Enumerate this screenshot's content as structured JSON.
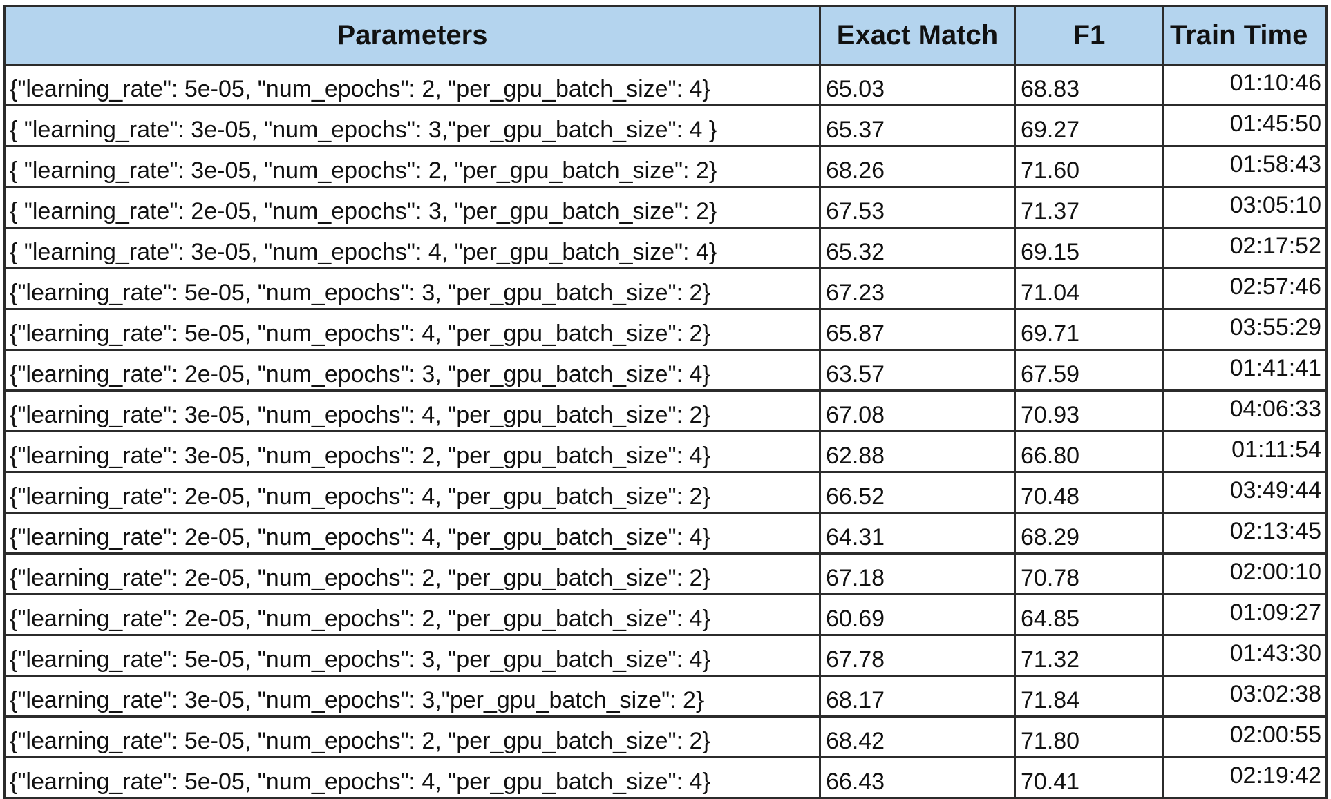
{
  "table": {
    "headers": [
      "Parameters",
      "Exact Match",
      "F1",
      "Train Time"
    ],
    "rows": [
      [
        "{\"learning_rate\": 5e-05, \"num_epochs\": 2, \"per_gpu_batch_size\": 4}",
        "65.03",
        "68.83",
        "01:10:46"
      ],
      [
        "{ \"learning_rate\": 3e-05, \"num_epochs\": 3,\"per_gpu_batch_size\": 4 }",
        "65.37",
        "69.27",
        "01:45:50"
      ],
      [
        "{ \"learning_rate\": 3e-05, \"num_epochs\": 2, \"per_gpu_batch_size\": 2}",
        "68.26",
        "71.60",
        "01:58:43"
      ],
      [
        "{ \"learning_rate\": 2e-05, \"num_epochs\": 3, \"per_gpu_batch_size\": 2}",
        "67.53",
        "71.37",
        "03:05:10"
      ],
      [
        "{ \"learning_rate\": 3e-05, \"num_epochs\": 4, \"per_gpu_batch_size\": 4}",
        "65.32",
        "69.15",
        "02:17:52"
      ],
      [
        "{\"learning_rate\": 5e-05, \"num_epochs\": 3, \"per_gpu_batch_size\": 2}",
        "67.23",
        "71.04",
        "02:57:46"
      ],
      [
        "{\"learning_rate\": 5e-05, \"num_epochs\": 4, \"per_gpu_batch_size\": 2}",
        "65.87",
        "69.71",
        "03:55:29"
      ],
      [
        "{\"learning_rate\": 2e-05, \"num_epochs\": 3, \"per_gpu_batch_size\": 4}",
        "63.57",
        "67.59",
        "01:41:41"
      ],
      [
        "{\"learning_rate\": 3e-05, \"num_epochs\": 4, \"per_gpu_batch_size\": 2}",
        "67.08",
        "70.93",
        "04:06:33"
      ],
      [
        "{\"learning_rate\": 3e-05, \"num_epochs\": 2, \"per_gpu_batch_size\": 4}",
        "62.88",
        "66.80",
        "01:11:54"
      ],
      [
        "{\"learning_rate\": 2e-05, \"num_epochs\": 4, \"per_gpu_batch_size\": 2}",
        "66.52",
        "70.48",
        "03:49:44"
      ],
      [
        "{\"learning_rate\": 2e-05, \"num_epochs\": 4, \"per_gpu_batch_size\": 4}",
        "64.31",
        "68.29",
        "02:13:45"
      ],
      [
        "{\"learning_rate\": 2e-05, \"num_epochs\": 2, \"per_gpu_batch_size\": 2}",
        "67.18",
        "70.78",
        "02:00:10"
      ],
      [
        "{\"learning_rate\": 2e-05, \"num_epochs\": 2, \"per_gpu_batch_size\": 4}",
        "60.69",
        "64.85",
        "01:09:27"
      ],
      [
        "{\"learning_rate\": 5e-05, \"num_epochs\": 3, \"per_gpu_batch_size\": 4}",
        "67.78",
        "71.32",
        "01:43:30"
      ],
      [
        "{\"learning_rate\": 3e-05, \"num_epochs\": 3,\"per_gpu_batch_size\": 2}",
        "68.17",
        "71.84",
        "03:02:38"
      ],
      [
        "{\"learning_rate\": 5e-05, \"num_epochs\": 2,  \"per_gpu_batch_size\": 2}",
        "68.42",
        "71.80",
        "02:00:55"
      ],
      [
        "{\"learning_rate\": 5e-05, \"num_epochs\": 4, \"per_gpu_batch_size\": 4}",
        "66.43",
        "70.41",
        "02:19:42"
      ]
    ]
  },
  "colors": {
    "header_bg": "#b4d4ee",
    "border": "#2b2b2b",
    "text": "#111111"
  }
}
